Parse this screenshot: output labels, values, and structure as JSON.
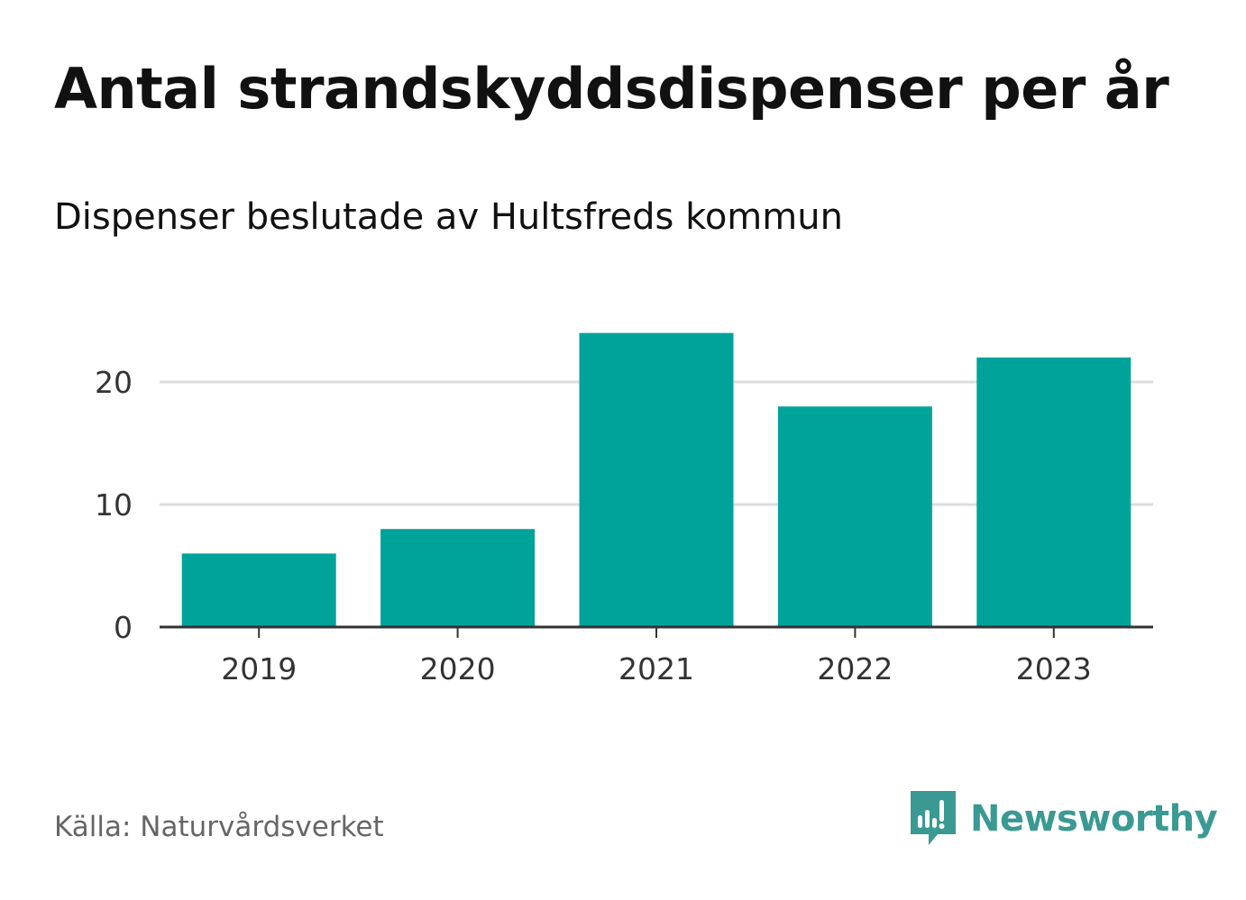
{
  "header": {
    "title": "Antal strandskyddsdispenser per år",
    "subtitle": "Dispenser beslutade av Hultsfreds kommun"
  },
  "chart_data": {
    "type": "bar",
    "title": "Antal strandskyddsdispenser per år",
    "subtitle": "Dispenser beslutade av Hultsfreds kommun",
    "categories": [
      "2019",
      "2020",
      "2021",
      "2022",
      "2023"
    ],
    "values": [
      6,
      8,
      24,
      18,
      22
    ],
    "yticks": [
      "0",
      "10",
      "20"
    ],
    "ylim": [
      0,
      24
    ],
    "xlabel": "",
    "ylabel": "",
    "grid": true,
    "bar_color": "#00a39a"
  },
  "footer": {
    "source": "Källa: Naturvårdsverket",
    "brand": "Newsworthy",
    "brand_icon": "newsworthy-logo-icon",
    "brand_color": "#3a9a93"
  }
}
